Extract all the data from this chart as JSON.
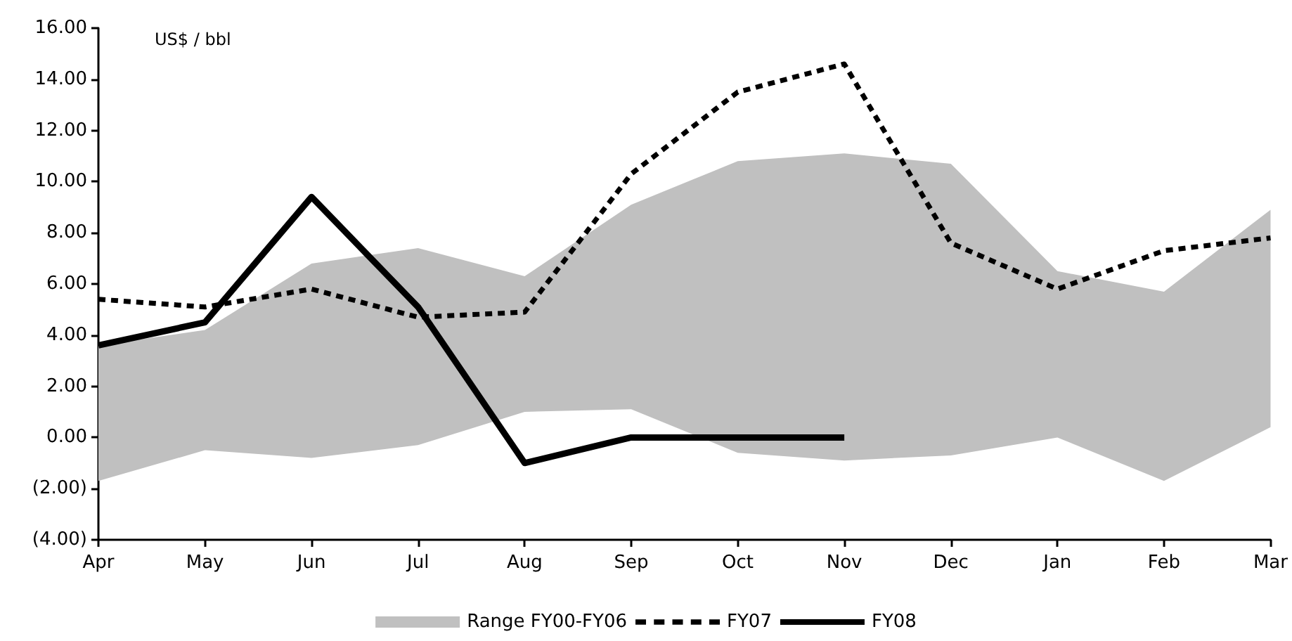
{
  "chart_data": {
    "type": "line",
    "ylabel": "US$ / bbl",
    "categories": [
      "Apr",
      "May",
      "Jun",
      "Jul",
      "Aug",
      "Sep",
      "Oct",
      "Nov",
      "Dec",
      "Jan",
      "Feb",
      "Mar"
    ],
    "series": [
      {
        "name": "Range FY00-FY06",
        "type": "area",
        "color": "#c0c0c0",
        "values": [
          null,
          null,
          null,
          null,
          null,
          null,
          null,
          null,
          null,
          null,
          null,
          null
        ],
        "lower": [
          -1.7,
          -0.5,
          -0.8,
          -0.3,
          1.0,
          1.1,
          -0.6,
          -0.9,
          -0.7,
          0.0,
          -1.7,
          0.4
        ],
        "upper": [
          3.6,
          4.2,
          6.8,
          7.4,
          6.3,
          9.1,
          10.8,
          11.1,
          10.7,
          6.5,
          5.7,
          8.9
        ]
      },
      {
        "name": "FY07",
        "type": "line",
        "color": "#000000",
        "line_style": "dashed",
        "values": [
          5.4,
          5.1,
          5.8,
          4.7,
          4.9,
          10.3,
          13.5,
          14.6,
          7.6,
          5.8,
          7.3,
          7.8
        ]
      },
      {
        "name": "FY08",
        "type": "line",
        "color": "#000000",
        "line_style": "solid",
        "values": [
          3.6,
          4.5,
          9.4,
          5.1,
          -1.0,
          0.0,
          0.0,
          0.0,
          null,
          null,
          null,
          null
        ]
      }
    ],
    "ylim": [
      -4,
      16
    ],
    "yticks": [
      {
        "value": -4,
        "label": "(4.00)"
      },
      {
        "value": -2,
        "label": "(2.00)"
      },
      {
        "value": 0,
        "label": "0.00"
      },
      {
        "value": 2,
        "label": "2.00"
      },
      {
        "value": 4,
        "label": "4.00"
      },
      {
        "value": 6,
        "label": "6.00"
      },
      {
        "value": 8,
        "label": "8.00"
      },
      {
        "value": 10,
        "label": "10.00"
      },
      {
        "value": 12,
        "label": "12.00"
      },
      {
        "value": 14,
        "label": "14.00"
      },
      {
        "value": 16,
        "label": "16.00"
      }
    ],
    "grid": false,
    "legend": "bottom",
    "marker": "none"
  }
}
